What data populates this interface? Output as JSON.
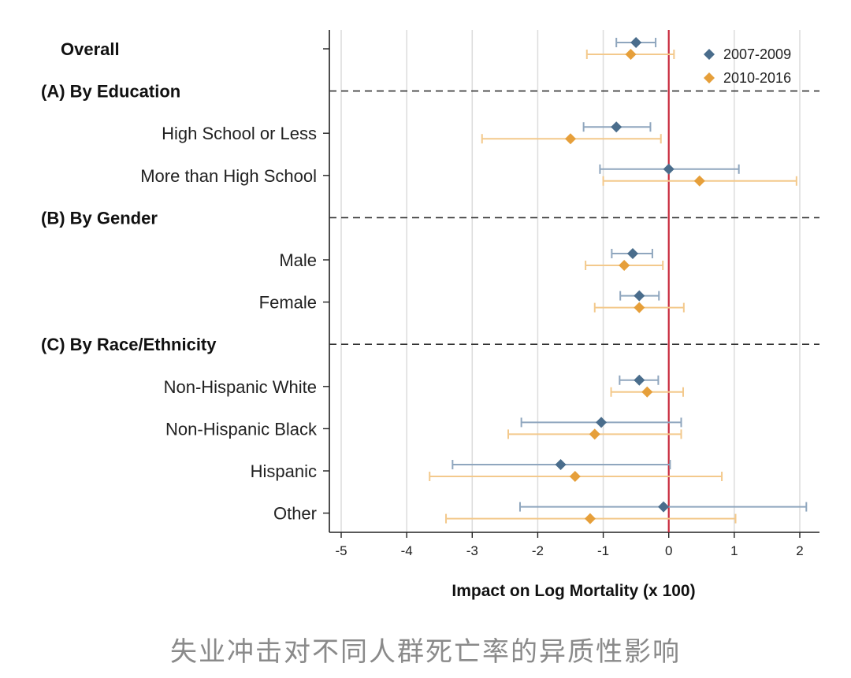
{
  "chart_data": {
    "type": "forest",
    "xlabel": "Impact on Log Mortality (x 100)",
    "xlim": [
      -5.2,
      2.3
    ],
    "xticks": [
      -5,
      -4,
      -3,
      -2,
      -1,
      0,
      1,
      2
    ],
    "reference_line": 0,
    "series": [
      {
        "name": "2007-2009",
        "color": "#4a6d8c",
        "whisker_color": "#8fa6be"
      },
      {
        "name": "2010-2016",
        "color": "#e69f3a",
        "whisker_color": "#f3c98c"
      }
    ],
    "rows": [
      {
        "kind": "group",
        "label": "Overall",
        "estimates": [
          {
            "est": -0.5,
            "lo": -0.8,
            "hi": -0.2
          },
          {
            "est": -0.58,
            "lo": -1.25,
            "hi": 0.08
          }
        ]
      },
      {
        "kind": "header",
        "label": "(A) By Education"
      },
      {
        "kind": "item",
        "label": "High School or Less",
        "estimates": [
          {
            "est": -0.8,
            "lo": -1.3,
            "hi": -0.28
          },
          {
            "est": -1.5,
            "lo": -2.85,
            "hi": -0.12
          }
        ]
      },
      {
        "kind": "item",
        "label": "More than High School",
        "estimates": [
          {
            "est": 0.0,
            "lo": -1.05,
            "hi": 1.07
          },
          {
            "est": 0.47,
            "lo": -1.0,
            "hi": 1.95
          }
        ]
      },
      {
        "kind": "header",
        "label": "(B) By Gender"
      },
      {
        "kind": "item",
        "label": "Male",
        "estimates": [
          {
            "est": -0.55,
            "lo": -0.87,
            "hi": -0.25
          },
          {
            "est": -0.68,
            "lo": -1.27,
            "hi": -0.09
          }
        ]
      },
      {
        "kind": "item",
        "label": "Female",
        "estimates": [
          {
            "est": -0.45,
            "lo": -0.74,
            "hi": -0.15
          },
          {
            "est": -0.45,
            "lo": -1.13,
            "hi": 0.23
          }
        ]
      },
      {
        "kind": "header",
        "label": "(C) By Race/Ethnicity"
      },
      {
        "kind": "item",
        "label": "Non-Hispanic White",
        "estimates": [
          {
            "est": -0.45,
            "lo": -0.75,
            "hi": -0.16
          },
          {
            "est": -0.33,
            "lo": -0.88,
            "hi": 0.22
          }
        ]
      },
      {
        "kind": "item",
        "label": "Non-Hispanic Black",
        "estimates": [
          {
            "est": -1.03,
            "lo": -2.25,
            "hi": 0.19
          },
          {
            "est": -1.13,
            "lo": -2.45,
            "hi": 0.19
          }
        ]
      },
      {
        "kind": "item",
        "label": "Hispanic",
        "estimates": [
          {
            "est": -1.65,
            "lo": -3.3,
            "hi": 0.02
          },
          {
            "est": -1.43,
            "lo": -3.65,
            "hi": 0.81
          }
        ]
      },
      {
        "kind": "item",
        "label": "Other",
        "estimates": [
          {
            "est": -0.08,
            "lo": -2.27,
            "hi": 2.1
          },
          {
            "est": -1.2,
            "lo": -3.4,
            "hi": 1.02
          }
        ]
      }
    ]
  },
  "caption": "失业冲击对不同人群死亡率的异质性影响"
}
